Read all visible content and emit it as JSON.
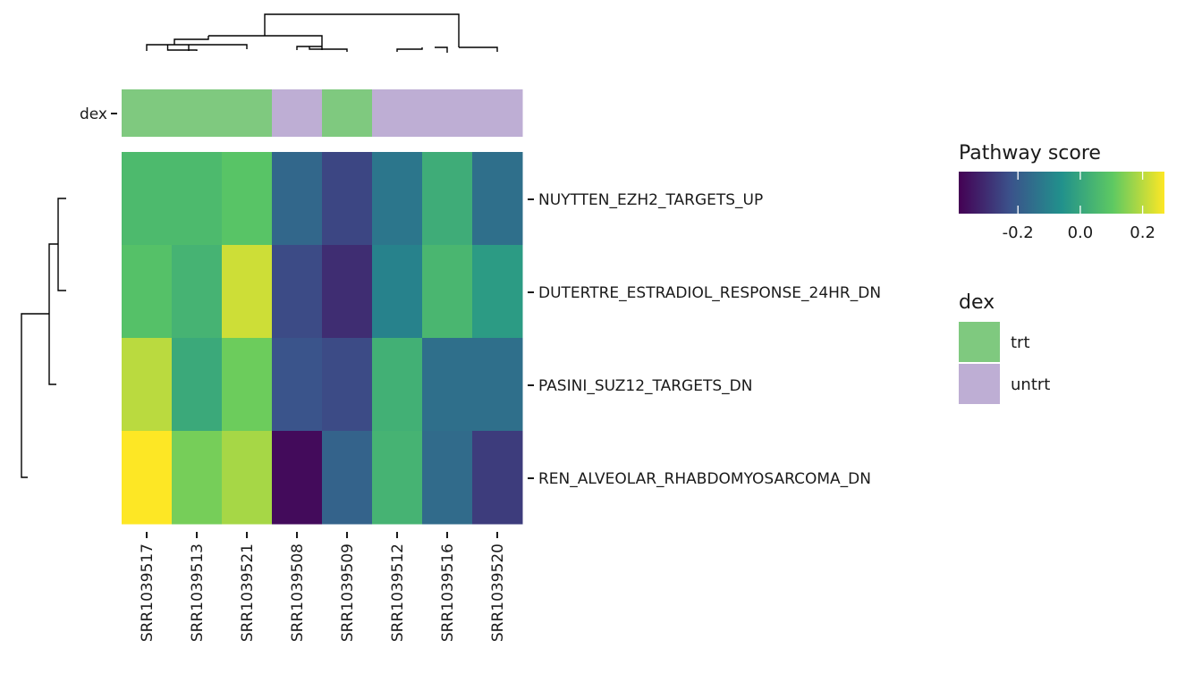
{
  "chart_data": {
    "type": "heatmap",
    "title": "",
    "columns": [
      "SRR1039517",
      "SRR1039513",
      "SRR1039521",
      "SRR1039508",
      "SRR1039509",
      "SRR1039512",
      "SRR1039516",
      "SRR1039520"
    ],
    "rows": [
      "NUYTTEN_EZH2_TARGETS_UP",
      "DUTERTRE_ESTRADIOL_RESPONSE_24HR_DN",
      "PASINI_SUZ12_TARGETS_DN",
      "REN_ALVEOLAR_RHABDOMYOSARCOMA_DN"
    ],
    "values": [
      [
        0.06,
        0.06,
        0.09,
        -0.17,
        -0.25,
        -0.13,
        0.02,
        -0.15
      ],
      [
        0.08,
        0.04,
        0.22,
        -0.24,
        -0.3,
        -0.1,
        0.05,
        -0.03
      ],
      [
        0.2,
        0.01,
        0.12,
        -0.22,
        -0.24,
        0.03,
        -0.15,
        -0.15
      ],
      [
        0.27,
        0.13,
        0.18,
        -0.37,
        -0.18,
        0.04,
        -0.16,
        -0.27
      ]
    ],
    "annotation": {
      "name": "dex",
      "values": [
        "trt",
        "trt",
        "trt",
        "untrt",
        "trt",
        "untrt",
        "untrt",
        "untrt"
      ]
    },
    "color_legend": {
      "title": "Pathway score",
      "min": -0.39,
      "max": 0.27,
      "ticks": [
        -0.2,
        0.0,
        0.2
      ],
      "tick_labels": [
        "-0.2",
        "0.0",
        "0.2"
      ],
      "palette": [
        "#440154",
        "#3b528b",
        "#21918c",
        "#5ec962",
        "#fde725"
      ]
    },
    "annotation_legend": {
      "title": "dex",
      "items": [
        {
          "label": "trt",
          "color": "#7fc97f"
        },
        {
          "label": "untrt",
          "color": "#beaed4"
        }
      ]
    },
    "legend_position": "right",
    "column_dendrogram": true,
    "row_dendrogram": true
  }
}
